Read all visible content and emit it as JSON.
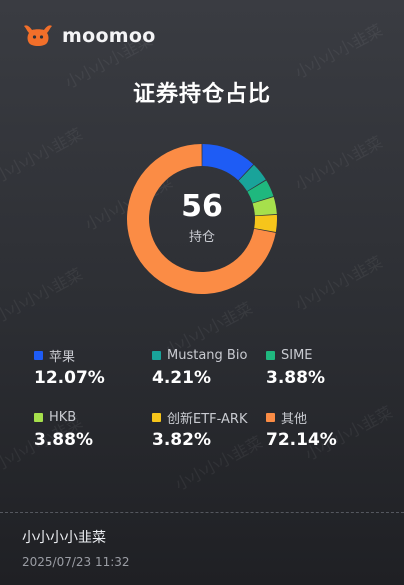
{
  "brand": {
    "name": "moomoo",
    "logo_icon": "bull-icon",
    "color": "#f26f2a"
  },
  "title": "证券持仓占比",
  "center": {
    "value": "56",
    "label": "持仓"
  },
  "chart_data": {
    "type": "pie",
    "categories": [
      "苹果",
      "Mustang Bio",
      "SIME",
      "HKB",
      "创新ETF-ARK",
      "其他"
    ],
    "values": [
      12.07,
      4.21,
      3.88,
      3.88,
      3.82,
      72.14
    ],
    "colors": [
      "#1e5cf5",
      "#19a39a",
      "#1fb87e",
      "#a6e04c",
      "#f6c51b",
      "#fb8c45"
    ]
  },
  "legend": [
    {
      "name": "苹果",
      "pct": "12.07%",
      "color": "#1e5cf5"
    },
    {
      "name": "Mustang Bio",
      "pct": "4.21%",
      "color": "#19a39a"
    },
    {
      "name": "SIME",
      "pct": "3.88%",
      "color": "#1fb87e"
    },
    {
      "name": "HKB",
      "pct": "3.88%",
      "color": "#a6e04c"
    },
    {
      "name": "创新ETF-ARK",
      "pct": "3.82%",
      "color": "#f6c51b"
    },
    {
      "name": "其他",
      "pct": "72.14%",
      "color": "#fb8c45"
    }
  ],
  "footer": {
    "user": "小小小小韭菜",
    "timestamp": "2025/07/23 11:32"
  },
  "watermark_text": "小小小小韭菜"
}
